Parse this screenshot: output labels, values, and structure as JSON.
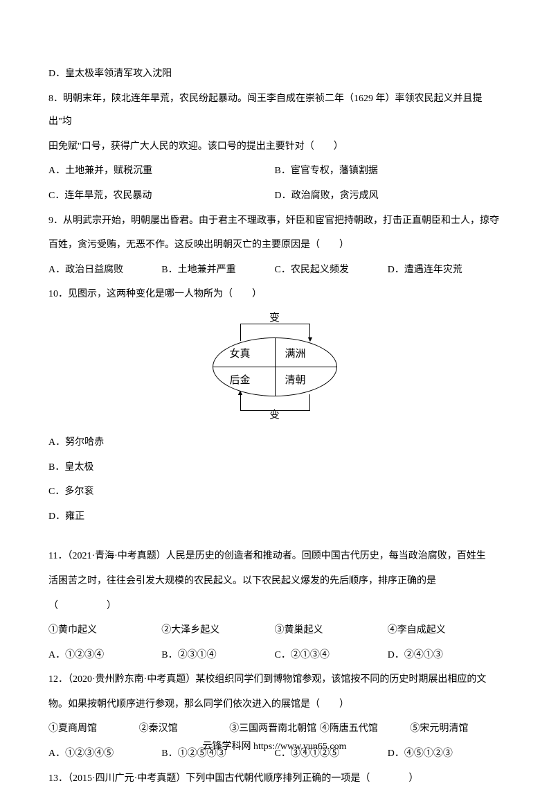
{
  "q7": {
    "optD": "D．皇太极率领清军攻入沈阳"
  },
  "q8": {
    "text1": "8．明朝末年，陕北连年旱荒，农民纷起暴动。闯王李自成在崇祯二年（1629 年）率领农民起义并且提出\"均",
    "text2": "田免赋\"口号，获得广大人民的欢迎。该口号的提出主要针对（　　）",
    "optA": "A．土地兼并，赋税沉重",
    "optB": "B．宦官专权，藩镇割据",
    "optC": "C．连年旱荒，农民暴动",
    "optD": "D．政治腐败，贪污成风"
  },
  "q9": {
    "text1": "9．从明武宗开始，明朝屡出昏君。由于君主不理政事，奸臣和宦官把持朝政，打击正直朝臣和士人，掠夺",
    "text2": "百姓，贪污受贿，无恶不作。这反映出明朝灭亡的主要原因是（　　）",
    "optA": "A．政治日益腐败",
    "optB": "B．土地兼并严重",
    "optC": "C．农民起义频发",
    "optD": "D．遭遇连年灾荒"
  },
  "q10": {
    "text": "10．见图示，这两种变化是哪一人物所为（　　）",
    "diagram": {
      "topLabel": "变",
      "bottomLabel": "变",
      "tl": "女真",
      "tr": "满洲",
      "bl": "后金",
      "br": "清朝"
    },
    "optA": "A．努尔哈赤",
    "optB": "B．皇太极",
    "optC": "C．多尔衮",
    "optD": "D．雍正"
  },
  "q11": {
    "text1": "11．（2021·青海·中考真题）人民是历史的创造者和推动者。回顾中国古代历史，每当政治腐败，百姓生",
    "text2": "活困苦之时，往往会引发大规模的农民起义。以下农民起义爆发的先后顺序，排序正确的是",
    "text3": "（　　　　　）",
    "item1": "①黄巾起义",
    "item2": "②大泽乡起义",
    "item3": "③黄巢起义",
    "item4": "④李自成起义",
    "optA": "A．①②③④",
    "optB": "B．②③①④",
    "optC": "C．②①③④",
    "optD": "D．②④①③"
  },
  "q12": {
    "text1": "12．（2020·贵州黔东南·中考真题）某校组织同学们到博物馆参观，该馆按不同的历史时期展出相应的文",
    "text2": "物。如果按朝代顺序进行参观，那么同学们依次进入的展馆是（　　）",
    "item1": "①夏商周馆",
    "item2": "②秦汉馆",
    "item3": "③三国两晋南北朝馆",
    "item4": "④隋唐五代馆",
    "item5": "⑤宋元明清馆",
    "optA": "A．①②③④⑤",
    "optB": "B．①②⑤④③",
    "optC": "C．③④①②⑤",
    "optD": "D．④⑤①②③"
  },
  "q13": {
    "text": "13．（2015·四川广元·中考真题）下列中国古代朝代顺序排列正确的一项是（　　　　）"
  },
  "footer": {
    "text": "云锋学科网 https://www.yun65.com"
  }
}
